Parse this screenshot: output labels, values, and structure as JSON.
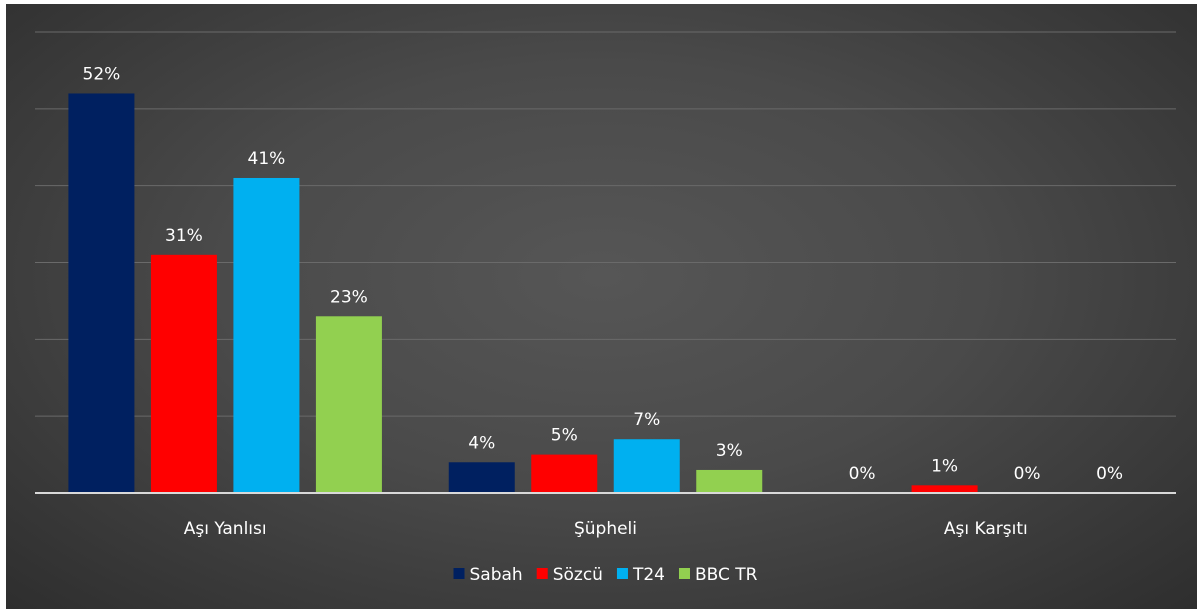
{
  "chart_data": {
    "type": "bar",
    "title": "",
    "xlabel": "",
    "ylabel": "",
    "categories": [
      "Aşı Yanlısı",
      "Şüpheli",
      "Aşı Karşıtı"
    ],
    "series": [
      {
        "name": "Sabah",
        "color": "#002060",
        "values": [
          52,
          4,
          0
        ],
        "labels": [
          "52%",
          "4%",
          "0%"
        ]
      },
      {
        "name": "Sözcü",
        "color": "#ff0000",
        "values": [
          31,
          5,
          1
        ],
        "labels": [
          "31%",
          "5%",
          "1%"
        ]
      },
      {
        "name": "T24",
        "color": "#00b0f0",
        "values": [
          41,
          7,
          0
        ],
        "labels": [
          "41%",
          "7%",
          "0%"
        ]
      },
      {
        "name": "BBC TR",
        "color": "#92d050",
        "values": [
          23,
          3,
          0
        ],
        "labels": [
          "23%",
          "3%",
          "0%"
        ]
      }
    ],
    "ylim": [
      0,
      60
    ],
    "y_gridlines": [
      10,
      20,
      30,
      40,
      50,
      60
    ],
    "grid": true,
    "legend": "bottom-center",
    "background": "#4a4a4a"
  }
}
